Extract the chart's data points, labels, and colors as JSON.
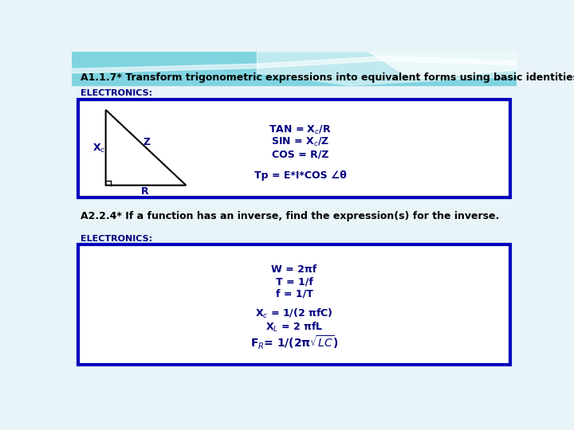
{
  "title1": "A1.1.7* Transform trigonometric expressions into equivalent forms using basic identities.",
  "section1_label": "ELECTRONICS:",
  "title2": "A2.2.4* If a function has an inverse, find the expression(s) for the inverse.",
  "section2_label": "ELECTRONICS:",
  "box_border_color": "#0000bb",
  "text_color": "#000080",
  "bg_top_color": "#7fd4e0",
  "bg_bottom_color": "#e8f4f8",
  "white": "#ffffff",
  "black": "#000000",
  "swirl1_color": "#b8e8f0",
  "swirl2_color": "#ffffff"
}
